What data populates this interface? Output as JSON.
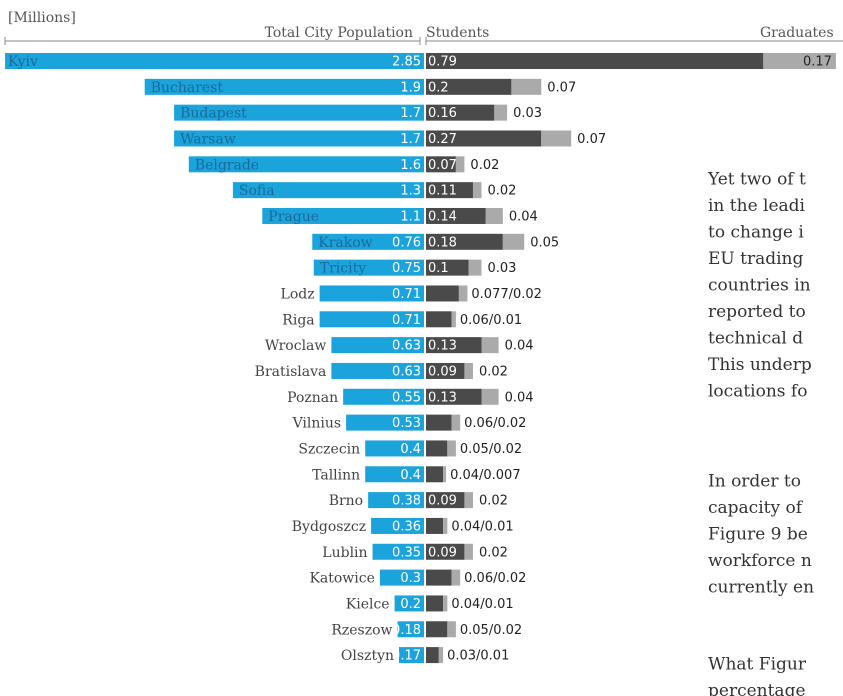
{
  "chart_data": {
    "type": "population-students",
    "unit_label": "[Millions]",
    "headers": [
      "Total City Population",
      "Students",
      "Graduates"
    ],
    "categories": [
      "Kyiv",
      "Bucharest",
      "Budapest",
      "Warsaw",
      "Belgrade",
      "Sofia",
      "Prague",
      "Krakow",
      "Tricity",
      "Lodz",
      "Riga",
      "Wroclaw",
      "Bratislava",
      "Poznan",
      "Vilnius",
      "Szczecin",
      "Tallinn",
      "Brno",
      "Bydgoszcz",
      "Lublin",
      "Katowice",
      "Kielce",
      "Rzeszow",
      "Olsztyn"
    ],
    "series": [
      {
        "name": "Total City Population",
        "color": "#1ba3dc",
        "values": [
          2.85,
          1.9,
          1.7,
          1.7,
          1.6,
          1.3,
          1.1,
          0.76,
          0.75,
          0.71,
          0.71,
          0.63,
          0.63,
          0.55,
          0.53,
          0.4,
          0.4,
          0.38,
          0.36,
          0.35,
          0.3,
          0.2,
          0.18,
          0.17
        ]
      },
      {
        "name": "Students",
        "color": "#4a4a4a",
        "values": [
          0.79,
          0.2,
          0.16,
          0.27,
          0.07,
          0.11,
          0.14,
          0.18,
          0.1,
          0.077,
          0.06,
          0.13,
          0.09,
          0.13,
          0.06,
          0.05,
          0.04,
          0.09,
          0.04,
          0.09,
          0.06,
          0.04,
          0.05,
          0.03
        ],
        "value_labels": [
          "0.79",
          "0.2",
          "0.16",
          "0.27",
          "0.07",
          "0.11",
          "0.14",
          "0.18",
          "0.1",
          "0.077/0.02",
          "0.06/0.01",
          "0.13",
          "0.09",
          "0.13",
          "0.06/0.02",
          "0.05/0.02",
          "0.04/0.007",
          "0.09",
          "0.04/0.01",
          "0.09",
          "0.06/0.02",
          "0.04/0.01",
          "0.05/0.02",
          "0.03/0.01"
        ]
      },
      {
        "name": "Graduates",
        "color": "#aaaaaa",
        "values": [
          0.17,
          0.07,
          0.03,
          0.07,
          0.02,
          0.02,
          0.04,
          0.05,
          0.03,
          0.02,
          0.01,
          0.04,
          0.02,
          0.04,
          0.02,
          0.02,
          0.007,
          0.02,
          0.01,
          0.02,
          0.02,
          0.01,
          0.02,
          0.01
        ],
        "value_labels": [
          "0.17",
          "0.07",
          "0.03",
          "0.07",
          "0.02",
          "0.02",
          "0.04",
          "0.05",
          "0.03",
          null,
          null,
          "0.04",
          "0.02",
          "0.04",
          null,
          null,
          null,
          "0.02",
          null,
          "0.02",
          null,
          null,
          null,
          null
        ]
      }
    ]
  },
  "body_text": [
    [
      "Yet two of t",
      "in the leadi",
      "to change i",
      "EU trading",
      "countries in",
      "reported to",
      "technical d",
      "This underp",
      "locations fo"
    ],
    [
      "In order to",
      "capacity of",
      "Figure 9 be",
      "workforce n",
      "currently en"
    ],
    [
      "What Figur",
      "percentage"
    ]
  ]
}
